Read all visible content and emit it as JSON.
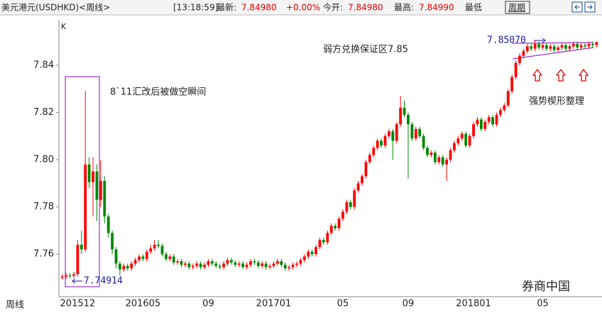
{
  "header": {
    "title": "美元港元(USDHKD)<周线>",
    "time": "[13:18:59]",
    "last_label": "最新:",
    "last": "7.84980",
    "change": "+0.00%",
    "open_label": "今开:",
    "open": "7.84980",
    "high_label": "最高:",
    "high": "7.84990",
    "low_label": "最低",
    "period": "周期"
  },
  "chart_data": {
    "type": "candlestick",
    "axis_tag": "K",
    "period_tag": "周线",
    "watermark": "券商中国",
    "up_color": "#ff0000",
    "down_color": "#008800",
    "ylim": [
      7.742,
      7.858
    ],
    "yticks": [
      7.76,
      7.78,
      {
        "value": 7.8,
        "label": "7.80"
      },
      7.82,
      7.84
    ],
    "grid": false,
    "categories": [
      null,
      null,
      null,
      null,
      "201512",
      null,
      null,
      null,
      null,
      null,
      null,
      null,
      null,
      null,
      null,
      null,
      null,
      null,
      null,
      null,
      null,
      "201605",
      null,
      null,
      null,
      null,
      null,
      null,
      null,
      null,
      null,
      null,
      null,
      null,
      null,
      null,
      null,
      null,
      "09",
      null,
      null,
      null,
      null,
      null,
      null,
      null,
      null,
      null,
      null,
      null,
      null,
      null,
      null,
      null,
      null,
      "201701",
      null,
      null,
      null,
      null,
      null,
      null,
      null,
      null,
      null,
      null,
      null,
      null,
      null,
      null,
      null,
      null,
      null,
      "05",
      null,
      null,
      null,
      null,
      null,
      null,
      null,
      null,
      null,
      null,
      null,
      null,
      null,
      null,
      null,
      null,
      "09",
      null,
      null,
      null,
      null,
      null,
      null,
      null,
      null,
      null,
      null,
      null,
      null,
      null,
      null,
      null,
      null,
      "201801",
      null,
      null,
      null,
      null,
      null,
      null,
      null,
      null,
      null,
      null,
      null,
      null,
      null,
      null,
      null,
      null,
      null,
      "05",
      null,
      null,
      null,
      null,
      null,
      null,
      null,
      null,
      null,
      null,
      null,
      null,
      null,
      null
    ],
    "open": [
      7.75,
      7.7505,
      7.751,
      7.7508,
      7.7515,
      7.764,
      7.762,
      7.798,
      7.7905,
      7.795,
      7.783,
      7.791,
      7.776,
      7.769,
      7.762,
      7.756,
      7.7535,
      7.755,
      7.754,
      7.756,
      7.7575,
      7.759,
      7.758,
      7.761,
      7.7625,
      7.764,
      7.7635,
      7.76,
      7.758,
      7.759,
      7.7565,
      7.757,
      7.7555,
      7.756,
      7.7545,
      7.755,
      7.756,
      7.7545,
      7.7555,
      7.757,
      7.756,
      7.755,
      7.7545,
      7.756,
      7.7575,
      7.7565,
      7.7555,
      7.756,
      7.7545,
      7.7555,
      7.757,
      7.7565,
      7.755,
      7.756,
      7.7545,
      7.755,
      7.756,
      7.757,
      7.7555,
      7.754,
      7.7545,
      7.7555,
      7.756,
      7.7575,
      7.759,
      7.761,
      7.76,
      7.763,
      7.766,
      7.765,
      7.769,
      7.772,
      7.771,
      7.775,
      7.778,
      7.782,
      7.78,
      7.787,
      7.79,
      7.793,
      7.799,
      7.802,
      7.805,
      7.808,
      7.806,
      7.81,
      7.812,
      7.808,
      7.815,
      7.822,
      7.819,
      7.815,
      7.809,
      7.813,
      7.81,
      7.805,
      7.802,
      7.803,
      7.799,
      7.801,
      7.798,
      7.8,
      7.804,
      7.807,
      7.809,
      7.811,
      7.806,
      7.81,
      7.815,
      7.817,
      7.813,
      7.816,
      7.818,
      7.815,
      7.819,
      7.821,
      7.823,
      7.829,
      7.835,
      7.841,
      7.844,
      7.846,
      7.848,
      7.847,
      7.849,
      7.8475,
      7.8485,
      7.847,
      7.848,
      7.8465,
      7.8475,
      7.8485,
      7.847,
      7.848,
      7.849,
      7.8475,
      7.8485,
      7.848,
      7.849,
      7.8485
    ],
    "high": [
      7.7515,
      7.752,
      7.752,
      7.7525,
      7.766,
      7.77,
      7.829,
      7.801,
      7.801,
      7.798,
      7.8,
      7.793,
      7.777,
      7.77,
      7.763,
      7.757,
      7.756,
      7.756,
      7.757,
      7.7585,
      7.76,
      7.76,
      7.762,
      7.764,
      7.766,
      7.766,
      7.7645,
      7.761,
      7.76,
      7.76,
      7.758,
      7.758,
      7.757,
      7.757,
      7.756,
      7.757,
      7.757,
      7.7565,
      7.758,
      7.758,
      7.757,
      7.756,
      7.757,
      7.7585,
      7.7585,
      7.7575,
      7.757,
      7.757,
      7.7565,
      7.758,
      7.758,
      7.7575,
      7.757,
      7.757,
      7.756,
      7.757,
      7.758,
      7.758,
      7.7565,
      7.7555,
      7.7565,
      7.757,
      7.7585,
      7.76,
      7.762,
      7.762,
      7.764,
      7.767,
      7.767,
      7.77,
      7.773,
      7.773,
      7.776,
      7.779,
      7.783,
      7.783,
      7.788,
      7.791,
      7.794,
      7.8,
      7.803,
      7.806,
      7.809,
      7.809,
      7.811,
      7.813,
      7.813,
      7.816,
      7.827,
      7.825,
      7.82,
      7.816,
      7.814,
      7.814,
      7.811,
      7.806,
      7.804,
      7.804,
      7.802,
      7.802,
      7.801,
      7.805,
      7.808,
      7.81,
      7.812,
      7.812,
      7.811,
      7.816,
      7.818,
      7.818,
      7.817,
      7.819,
      7.819,
      7.82,
      7.822,
      7.824,
      7.83,
      7.836,
      7.842,
      7.845,
      7.847,
      7.849,
      7.849,
      7.8507,
      7.85,
      7.8495,
      7.8495,
      7.849,
      7.849,
      7.8485,
      7.8495,
      7.8495,
      7.849,
      7.85,
      7.85,
      7.8495,
      7.8495,
      7.85,
      7.85,
      7.8499
    ],
    "low": [
      7.74914,
      7.7495,
      7.7498,
      7.7498,
      7.7505,
      7.76,
      7.761,
      7.788,
      7.776,
      7.774,
      7.78,
      7.773,
      7.767,
      7.76,
      7.754,
      7.751,
      7.7525,
      7.753,
      7.753,
      7.755,
      7.7565,
      7.757,
      7.757,
      7.76,
      7.7615,
      7.7625,
      7.759,
      7.757,
      7.757,
      7.7555,
      7.7555,
      7.7545,
      7.7545,
      7.7535,
      7.7535,
      7.754,
      7.7535,
      7.7535,
      7.7545,
      7.755,
      7.754,
      7.7535,
      7.7535,
      7.755,
      7.7555,
      7.7545,
      7.7545,
      7.7535,
      7.7535,
      7.7545,
      7.7555,
      7.754,
      7.754,
      7.7535,
      7.7535,
      7.754,
      7.755,
      7.7545,
      7.753,
      7.753,
      7.7535,
      7.7545,
      7.755,
      7.7565,
      7.758,
      7.759,
      7.759,
      7.762,
      7.764,
      7.764,
      7.768,
      7.77,
      7.77,
      7.774,
      7.777,
      7.779,
      7.779,
      7.786,
      7.789,
      7.792,
      7.798,
      7.801,
      7.804,
      7.805,
      7.805,
      7.809,
      7.8,
      7.807,
      7.814,
      7.818,
      7.792,
      7.808,
      7.808,
      7.809,
      7.804,
      7.801,
      7.801,
      7.798,
      7.798,
      7.797,
      7.791,
      7.799,
      7.803,
      7.806,
      7.808,
      7.805,
      7.805,
      7.809,
      7.814,
      7.812,
      7.812,
      7.815,
      7.814,
      7.814,
      7.818,
      7.82,
      7.822,
      7.828,
      7.834,
      7.84,
      7.843,
      7.845,
      7.846,
      7.846,
      7.8465,
      7.8465,
      7.846,
      7.846,
      7.8455,
      7.8455,
      7.8465,
      7.846,
      7.846,
      7.847,
      7.8465,
      7.8465,
      7.847,
      7.847,
      7.8475,
      7.8475
    ],
    "close": [
      7.7505,
      7.751,
      7.7508,
      7.7515,
      7.764,
      7.762,
      7.798,
      7.7905,
      7.795,
      7.783,
      7.791,
      7.776,
      7.769,
      7.762,
      7.756,
      7.7535,
      7.755,
      7.754,
      7.756,
      7.7575,
      7.759,
      7.758,
      7.761,
      7.7625,
      7.764,
      7.7635,
      7.76,
      7.758,
      7.759,
      7.7565,
      7.757,
      7.7555,
      7.756,
      7.7545,
      7.755,
      7.756,
      7.7545,
      7.7555,
      7.757,
      7.756,
      7.755,
      7.7545,
      7.756,
      7.7575,
      7.7565,
      7.7555,
      7.756,
      7.7545,
      7.7555,
      7.757,
      7.7565,
      7.755,
      7.756,
      7.7545,
      7.755,
      7.756,
      7.757,
      7.7555,
      7.754,
      7.7545,
      7.7555,
      7.756,
      7.7575,
      7.759,
      7.761,
      7.76,
      7.763,
      7.766,
      7.765,
      7.769,
      7.772,
      7.771,
      7.775,
      7.778,
      7.782,
      7.78,
      7.787,
      7.79,
      7.793,
      7.799,
      7.802,
      7.805,
      7.808,
      7.806,
      7.81,
      7.812,
      7.808,
      7.815,
      7.822,
      7.819,
      7.815,
      7.809,
      7.813,
      7.81,
      7.805,
      7.802,
      7.803,
      7.799,
      7.801,
      7.798,
      7.8,
      7.804,
      7.807,
      7.809,
      7.811,
      7.806,
      7.81,
      7.815,
      7.817,
      7.813,
      7.816,
      7.818,
      7.815,
      7.819,
      7.821,
      7.823,
      7.829,
      7.835,
      7.841,
      7.844,
      7.846,
      7.848,
      7.847,
      7.849,
      7.8475,
      7.8485,
      7.847,
      7.848,
      7.8465,
      7.8475,
      7.8485,
      7.847,
      7.848,
      7.849,
      7.8475,
      7.8485,
      7.848,
      7.849,
      7.8485,
      7.8498
    ],
    "annotations": {
      "shock": "8`11汇改后被做空瞬间",
      "peg": "弱方兑换保证区7.85",
      "wedge": "强势楔形整理",
      "max_label": "7.85070",
      "min_label": "7.74914"
    }
  }
}
